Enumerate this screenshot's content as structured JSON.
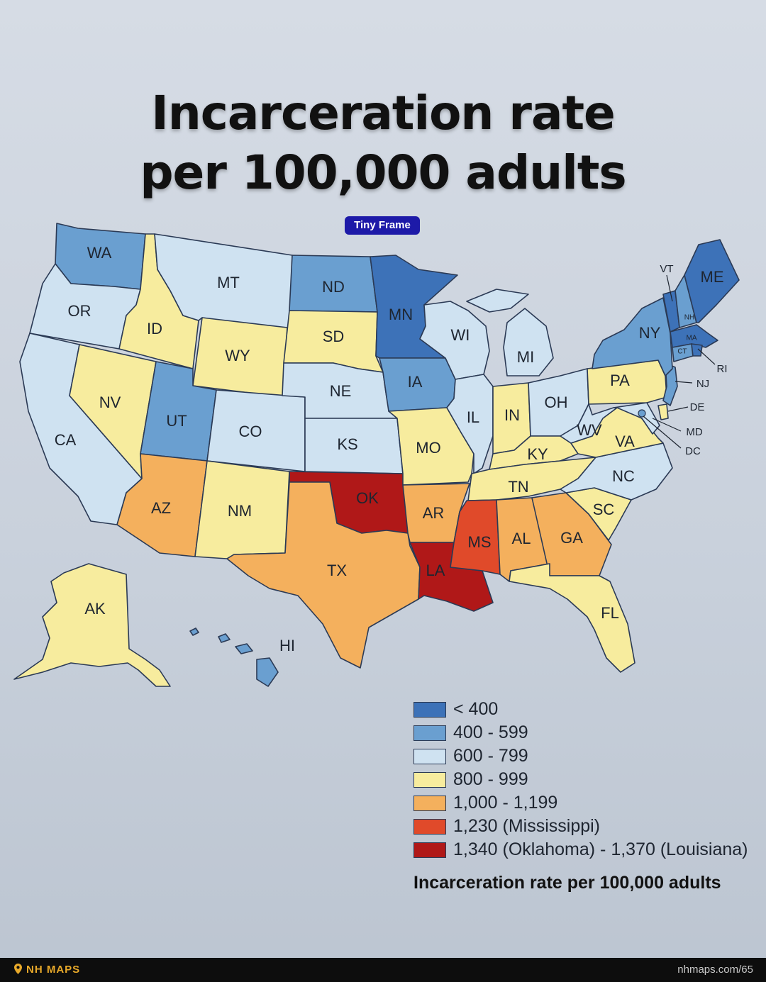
{
  "title_line1": "Incarceration rate",
  "title_line2": "per 100,000 adults",
  "badge": "Tiny Frame",
  "colors": {
    "lt400": "#3d72b8",
    "r400_599": "#6a9fd0",
    "r600_799": "#cfe2f1",
    "r800_999": "#f7ec9e",
    "r1000_1199": "#f4b05d",
    "mississippi": "#e04a2a",
    "ok_la": "#b01818"
  },
  "legend": {
    "items": [
      {
        "label": "< 400",
        "color": "#3d72b8"
      },
      {
        "label": "400 - 599",
        "color": "#6a9fd0"
      },
      {
        "label": "600 - 799",
        "color": "#cfe2f1"
      },
      {
        "label": "800 - 999",
        "color": "#f7ec9e"
      },
      {
        "label": "1,000 - 1,199",
        "color": "#f4b05d"
      },
      {
        "label": "1,230 (Mississippi)",
        "color": "#e04a2a"
      },
      {
        "label": "1,340 (Oklahoma) - 1,370 (Louisiana)",
        "color": "#b01818"
      }
    ],
    "title": "Incarceration rate per 100,000 adults"
  },
  "states": {
    "WA": {
      "label": "WA",
      "category": "400 - 599"
    },
    "OR": {
      "label": "OR",
      "category": "600 - 799"
    },
    "CA": {
      "label": "CA",
      "category": "600 - 799"
    },
    "ID": {
      "label": "ID",
      "category": "800 - 999"
    },
    "NV": {
      "label": "NV",
      "category": "800 - 999"
    },
    "MT": {
      "label": "MT",
      "category": "600 - 799"
    },
    "WY": {
      "label": "WY",
      "category": "800 - 999"
    },
    "UT": {
      "label": "UT",
      "category": "400 - 599"
    },
    "CO": {
      "label": "CO",
      "category": "600 - 799"
    },
    "AZ": {
      "label": "AZ",
      "category": "1,000 - 1,199"
    },
    "NM": {
      "label": "NM",
      "category": "800 - 999"
    },
    "ND": {
      "label": "ND",
      "category": "400 - 599"
    },
    "SD": {
      "label": "SD",
      "category": "800 - 999"
    },
    "NE": {
      "label": "NE",
      "category": "600 - 799"
    },
    "KS": {
      "label": "KS",
      "category": "600 - 799"
    },
    "OK": {
      "label": "OK",
      "category": "1,340 (Oklahoma) - 1,370 (Louisiana)"
    },
    "TX": {
      "label": "TX",
      "category": "1,000 - 1,199"
    },
    "MN": {
      "label": "MN",
      "category": "< 400"
    },
    "IA": {
      "label": "IA",
      "category": "400 - 599"
    },
    "MO": {
      "label": "MO",
      "category": "800 - 999"
    },
    "AR": {
      "label": "AR",
      "category": "1,000 - 1,199"
    },
    "LA": {
      "label": "LA",
      "category": "1,340 (Oklahoma) - 1,370 (Louisiana)"
    },
    "WI": {
      "label": "WI",
      "category": "600 - 799"
    },
    "IL": {
      "label": "IL",
      "category": "600 - 799"
    },
    "MI": {
      "label": "MI",
      "category": "600 - 799"
    },
    "IN": {
      "label": "IN",
      "category": "800 - 999"
    },
    "OH": {
      "label": "OH",
      "category": "600 - 799"
    },
    "KY": {
      "label": "KY",
      "category": "800 - 999"
    },
    "TN": {
      "label": "TN",
      "category": "800 - 999"
    },
    "MS": {
      "label": "MS",
      "category": "1,230 (Mississippi)"
    },
    "AL": {
      "label": "AL",
      "category": "1,000 - 1,199"
    },
    "GA": {
      "label": "GA",
      "category": "1,000 - 1,199"
    },
    "FL": {
      "label": "FL",
      "category": "800 - 999"
    },
    "SC": {
      "label": "SC",
      "category": "800 - 999"
    },
    "NC": {
      "label": "NC",
      "category": "600 - 799"
    },
    "VA": {
      "label": "VA",
      "category": "800 - 999"
    },
    "WV": {
      "label": "WV",
      "category": "600 - 799"
    },
    "PA": {
      "label": "PA",
      "category": "800 - 999"
    },
    "NY": {
      "label": "NY",
      "category": "400 - 599"
    },
    "VT": {
      "label": "VT",
      "category": "< 400"
    },
    "NH": {
      "label": "NH",
      "category": "400 - 599"
    },
    "ME": {
      "label": "ME",
      "category": "< 400"
    },
    "MA": {
      "label": "MA",
      "category": "< 400"
    },
    "RI": {
      "label": "RI",
      "category": "< 400"
    },
    "CT": {
      "label": "CT",
      "category": "400 - 599"
    },
    "NJ": {
      "label": "NJ",
      "category": "400 - 599"
    },
    "DE": {
      "label": "DE",
      "category": "800 - 999"
    },
    "MD": {
      "label": "MD",
      "category": "600 - 799"
    },
    "DC": {
      "label": "DC",
      "category": "400 - 599"
    },
    "AK": {
      "label": "AK",
      "category": "800 - 999"
    },
    "HI": {
      "label": "HI",
      "category": "400 - 599"
    }
  },
  "footer": {
    "brand": "NH MAPS",
    "url": "nhmaps.com/65"
  }
}
